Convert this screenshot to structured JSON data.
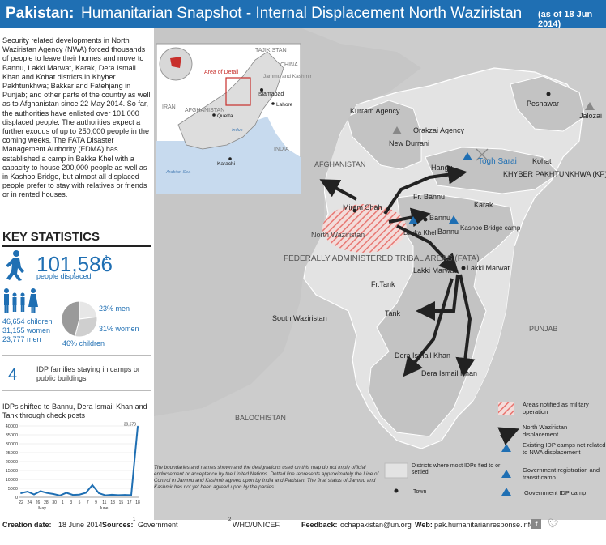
{
  "header": {
    "title_bold": "Pakistan:",
    "title_rest": "Humanitarian Snapshot - Internal Displacement North Waziristan",
    "date": "(as of 18 Jun 2014)"
  },
  "intro_text": "Security related developments in North Waziristan Agency (NWA) forced thousands of people to leave their homes and move to Bannu, Lakki Marwat, Karak, Dera Ismail Khan and Kohat districts in Khyber Pakhtunkhwa; Bakkar and Fatehjang in Punjab; and other parts of the country as well as to Afghanistan since 22 May 2014. So far, the authorities have enlisted over 101,000 displaced people. The authorities expect a further exodus of up to 250,000 people in the coming weeks. The FATA Disaster Management Authority (FDMA) has established a camp in Bakka Khel with a capacity to house 200,000 people as well as in Kashoo Bridge, but almost all displaced people prefer to stay with relatives or friends or in rented houses.",
  "key_stats": {
    "title": "KEY STATISTICS",
    "displaced": "101,586",
    "displaced_sup": "1",
    "displaced_label": "people displaced",
    "children": "46,654 children",
    "women": "31,155 women",
    "men": "23,777 men",
    "pie": {
      "men_label": "23% men",
      "women_label": "31% women",
      "children_label": "46% children",
      "men_pct": 23,
      "women_pct": 31,
      "children_pct": 46,
      "colors": {
        "men": "#e6e6e6",
        "women": "#cfcfcf",
        "children": "#9a9a9a"
      }
    },
    "idp_families": "4",
    "idp_families_label": "IDP families staying in camps or public buildings"
  },
  "chart_data": {
    "type": "line",
    "title": "IDPs shifted to Bannu, Dera Ismail Khan and Tank through check posts",
    "x_tick_labels": [
      "22",
      "24",
      "26",
      "28",
      "30",
      "1",
      "3",
      "5",
      "7",
      "9",
      "11",
      "13",
      "15",
      "17",
      "18"
    ],
    "x_month_labels": [
      "May",
      "June"
    ],
    "y_ticks": [
      0,
      5000,
      10000,
      15000,
      20000,
      25000,
      30000,
      35000,
      40000
    ],
    "y_tick_labels": [
      "0",
      "5000",
      "10000",
      "15000",
      "20000",
      "25000",
      "30000",
      "35000",
      "40000"
    ],
    "ylim": [
      0,
      40000
    ],
    "peak_label": "39,679",
    "series": [
      {
        "values": [
          2300,
          3200,
          1600,
          3400,
          2400,
          1800,
          1000,
          2500,
          1300,
          1500,
          2500,
          6800,
          2300,
          1100,
          1400,
          1200,
          1300,
          1200,
          39679
        ]
      }
    ],
    "color": "#1f6fb3"
  },
  "map": {
    "labels": {
      "kurram": "Kurram Agency",
      "orakzai": "Orakzai Agency",
      "peshawar": "Peshawar",
      "jalozai": "Jalozai",
      "new_durrani": "New Durrani",
      "togh_sarai": "Togh Sarai",
      "kohat": "Kohat",
      "kp": "KHYBER PAKHTUNKHWA (KP)",
      "hangu": "Hangu",
      "afghanistan": "AFGHANISTAN",
      "fr_bannu": "Fr. Bannu",
      "karak": "Karak",
      "miram_shah": "Miram Shah",
      "bannu": "Bannu",
      "bannu2": "Bannu",
      "kashoo": "Kashoo Bridge camp",
      "bakka_khel": "Bakka Khel",
      "north_waziristan": "North Waziristan",
      "fata": "FEDERALLY ADMINISTERED TRIBAL AREAS (FATA)",
      "fr_tank": "Fr.Tank",
      "lakki_marwat": "Lakki Marwat",
      "lakki_marwat_town": "Lakki Marwat",
      "tank": "Tank",
      "south_waziristan": "South Waziristan",
      "punjab": "PUNJAB",
      "dera_ismail_khan": "Dera Ismail Khan",
      "dera_ismail_khan_town": "Dera Ismail Khan",
      "balochistan": "BALOCHISTAN"
    },
    "inset": {
      "tajikistan": "TAJIKISTAN",
      "china": "CHINA",
      "jammu": "Jammu and Kashmir",
      "area_of_detail": "Area of Detail",
      "afghanistan": "AFGHANISTAN",
      "islamabad": "Islamabad",
      "lahore": "Lahore",
      "iran": "IRAN",
      "quetta": "Quetta",
      "india": "INDIA",
      "indus": "Indus",
      "karachi": "Karachi",
      "arabian_sea": "Arabian Sea"
    },
    "disclaimer": "The boundaries and names shown and the designations used on this map do not imply official endorsement or acceptance by the United Nations. Dotted line represents approximately the Line of Control in Jammu and Kashmir agreed upon by India and Pakistan. The final status of Jammu and Kashmir has not yet been agreed upon by the parties.",
    "legend": {
      "military": "Areas notified as military operation",
      "displacement": "North Waziristan displacement",
      "existing_camps": "Existing IDP camps not related to NWA displacement",
      "registration": "Government registration and transit camp",
      "gov_camp": "Government IDP camp",
      "districts": "Districts where most IDPs fled to or settled",
      "town": "Town"
    },
    "colors": {
      "land": "#cccccc",
      "kp_fata": "#e3e3e3",
      "highlight": "#c3c3c3",
      "water": "#c7daee",
      "red": "#e8726d",
      "blue": "#1f6fb3"
    }
  },
  "footer": {
    "creation_label": "Creation date:",
    "creation_value": "18 June 2014",
    "sources_label": "Sources:",
    "source1_sup": "1",
    "source1": "Government",
    "source2_sup": "2",
    "source2": "WHO/UNICEF.",
    "feedback_label": "Feedback:",
    "feedback_value": "ochapakistan@un.org",
    "web_label": "Web:",
    "web_value": "pak.humanitarianresponse.info"
  }
}
